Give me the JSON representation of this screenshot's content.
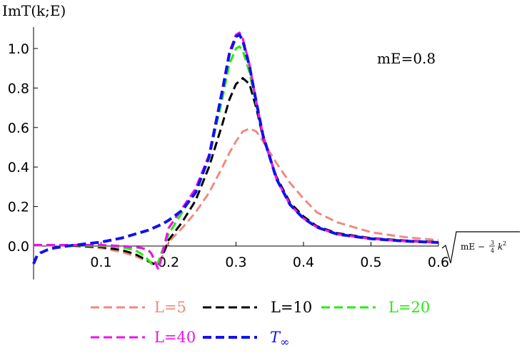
{
  "chart_data": {
    "type": "line",
    "ylabel": "ImT(k;E)",
    "xlabel": "√(mE − ¾ k²)",
    "xlabel_parts": {
      "radicand_left": "mE −",
      "fraction_num": "3",
      "fraction_den": "4",
      "radicand_var": "k",
      "radicand_exp": "2"
    },
    "annotation": "mE=0.8",
    "xlim": [
      0.0,
      0.6
    ],
    "ylim": [
      -0.17,
      1.12
    ],
    "x_ticks": [
      {
        "value": 0.1,
        "label": "0.1"
      },
      {
        "value": 0.2,
        "label": "0.2"
      },
      {
        "value": 0.3,
        "label": "0.3"
      },
      {
        "value": 0.4,
        "label": "0.4"
      },
      {
        "value": 0.5,
        "label": "0.5"
      },
      {
        "value": 0.6,
        "label": "0.6"
      }
    ],
    "y_ticks": [
      {
        "value": 0.0,
        "label": "0.0"
      },
      {
        "value": 0.2,
        "label": "0.2"
      },
      {
        "value": 0.4,
        "label": "0.4"
      },
      {
        "value": 0.6,
        "label": "0.6"
      },
      {
        "value": 0.8,
        "label": "0.8"
      },
      {
        "value": 1.0,
        "label": "1.0"
      }
    ],
    "grid": false,
    "legend_position": "bottom",
    "series": [
      {
        "name": "L=5",
        "color": "#f08a7e",
        "x": [
          0.0,
          0.05,
          0.1,
          0.13,
          0.15,
          0.17,
          0.18,
          0.185,
          0.19,
          0.2,
          0.22,
          0.24,
          0.26,
          0.28,
          0.29,
          0.3,
          0.31,
          0.32,
          0.33,
          0.34,
          0.36,
          0.38,
          0.4,
          0.42,
          0.45,
          0.5,
          0.55,
          0.6
        ],
        "y": [
          0.005,
          0.003,
          -0.01,
          -0.03,
          -0.05,
          -0.08,
          -0.09,
          -0.09,
          -0.06,
          0.02,
          0.09,
          0.17,
          0.27,
          0.4,
          0.47,
          0.53,
          0.58,
          0.595,
          0.58,
          0.53,
          0.42,
          0.32,
          0.24,
          0.17,
          0.12,
          0.07,
          0.045,
          0.03
        ]
      },
      {
        "name": "L=10",
        "color": "#000000",
        "x": [
          0.0,
          0.05,
          0.1,
          0.13,
          0.15,
          0.17,
          0.18,
          0.185,
          0.19,
          0.2,
          0.22,
          0.24,
          0.26,
          0.28,
          0.29,
          0.3,
          0.31,
          0.32,
          0.33,
          0.34,
          0.36,
          0.38,
          0.4,
          0.42,
          0.45,
          0.5,
          0.55,
          0.6
        ],
        "y": [
          0.005,
          0.003,
          -0.005,
          -0.02,
          -0.04,
          -0.075,
          -0.095,
          -0.095,
          -0.06,
          0.03,
          0.12,
          0.23,
          0.4,
          0.62,
          0.74,
          0.82,
          0.85,
          0.82,
          0.7,
          0.55,
          0.35,
          0.22,
          0.15,
          0.1,
          0.065,
          0.04,
          0.028,
          0.02
        ]
      },
      {
        "name": "L=20",
        "color": "#22ee11",
        "x": [
          0.0,
          0.05,
          0.1,
          0.13,
          0.15,
          0.16,
          0.17,
          0.175,
          0.18,
          0.185,
          0.19,
          0.2,
          0.22,
          0.24,
          0.26,
          0.28,
          0.29,
          0.3,
          0.305,
          0.31,
          0.32,
          0.33,
          0.34,
          0.36,
          0.38,
          0.4,
          0.42,
          0.45,
          0.5,
          0.55,
          0.6
        ],
        "y": [
          0.005,
          0.005,
          0.0,
          -0.005,
          -0.02,
          -0.04,
          -0.07,
          -0.09,
          -0.1,
          -0.08,
          -0.03,
          0.06,
          0.17,
          0.28,
          0.45,
          0.75,
          0.92,
          1.0,
          1.01,
          0.99,
          0.88,
          0.72,
          0.56,
          0.34,
          0.21,
          0.14,
          0.095,
          0.06,
          0.037,
          0.025,
          0.018
        ]
      },
      {
        "name": "L=40",
        "color": "#ee11ee",
        "x": [
          0.0,
          0.05,
          0.1,
          0.13,
          0.15,
          0.16,
          0.17,
          0.175,
          0.18,
          0.185,
          0.19,
          0.2,
          0.22,
          0.24,
          0.26,
          0.28,
          0.29,
          0.3,
          0.305,
          0.31,
          0.32,
          0.33,
          0.34,
          0.36,
          0.38,
          0.4,
          0.42,
          0.45,
          0.5,
          0.55,
          0.6
        ],
        "y": [
          0.005,
          0.005,
          0.005,
          0.0,
          -0.005,
          -0.01,
          -0.02,
          -0.04,
          -0.08,
          -0.12,
          -0.05,
          0.09,
          0.19,
          0.29,
          0.46,
          0.8,
          0.98,
          1.07,
          1.08,
          1.05,
          0.92,
          0.73,
          0.56,
          0.34,
          0.21,
          0.14,
          0.095,
          0.06,
          0.037,
          0.025,
          0.018
        ]
      },
      {
        "name": "T∞",
        "label_main": "T",
        "label_sub": "∞",
        "color": "#1111ee",
        "x": [
          0.0,
          0.005,
          0.01,
          0.02,
          0.03,
          0.05,
          0.07,
          0.1,
          0.13,
          0.15,
          0.17,
          0.19,
          0.2,
          0.22,
          0.24,
          0.26,
          0.28,
          0.29,
          0.3,
          0.305,
          0.31,
          0.32,
          0.33,
          0.34,
          0.36,
          0.38,
          0.4,
          0.42,
          0.45,
          0.5,
          0.55,
          0.6
        ],
        "y": [
          -0.09,
          -0.05,
          -0.035,
          -0.02,
          -0.01,
          0.0,
          0.008,
          0.02,
          0.04,
          0.06,
          0.08,
          0.11,
          0.13,
          0.18,
          0.27,
          0.45,
          0.79,
          0.97,
          1.06,
          1.07,
          1.04,
          0.91,
          0.73,
          0.56,
          0.34,
          0.21,
          0.14,
          0.095,
          0.06,
          0.037,
          0.025,
          0.018
        ]
      }
    ]
  }
}
